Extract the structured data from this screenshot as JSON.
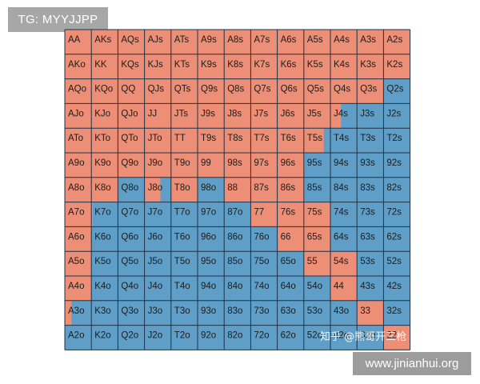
{
  "badges": {
    "tg": "TG: MYYJJPP",
    "site": "www.jinianhui.org",
    "zhihu": "知乎 @熊哥开三枪"
  },
  "colors": {
    "raise": "#ec8f76",
    "fold": "#5f9fc7",
    "grid": "#1f3147"
  },
  "chart_data": {
    "type": "table",
    "ranks": [
      "A",
      "K",
      "Q",
      "J",
      "T",
      "9",
      "8",
      "7",
      "6",
      "5",
      "4",
      "3",
      "2"
    ],
    "hands": [
      [
        "AA",
        "AKs",
        "AQs",
        "AJs",
        "ATs",
        "A9s",
        "A8s",
        "A7s",
        "A6s",
        "A5s",
        "A4s",
        "A3s",
        "A2s"
      ],
      [
        "AKo",
        "KK",
        "KQs",
        "KJs",
        "KTs",
        "K9s",
        "K8s",
        "K7s",
        "K6s",
        "K5s",
        "K4s",
        "K3s",
        "K2s"
      ],
      [
        "AQo",
        "KQo",
        "QQ",
        "QJs",
        "QTs",
        "Q9s",
        "Q8s",
        "Q7s",
        "Q6s",
        "Q5s",
        "Q4s",
        "Q3s",
        "Q2s"
      ],
      [
        "AJo",
        "KJo",
        "QJo",
        "JJ",
        "JTs",
        "J9s",
        "J8s",
        "J7s",
        "J6s",
        "J5s",
        "J4s",
        "J3s",
        "J2s"
      ],
      [
        "ATo",
        "KTo",
        "QTo",
        "JTo",
        "TT",
        "T9s",
        "T8s",
        "T7s",
        "T6s",
        "T5s",
        "T4s",
        "T3s",
        "T2s"
      ],
      [
        "A9o",
        "K9o",
        "Q9o",
        "J9o",
        "T9o",
        "99",
        "98s",
        "97s",
        "96s",
        "95s",
        "94s",
        "93s",
        "92s"
      ],
      [
        "A8o",
        "K8o",
        "Q8o",
        "J8o",
        "T8o",
        "98o",
        "88",
        "87s",
        "86s",
        "85s",
        "84s",
        "83s",
        "82s"
      ],
      [
        "A7o",
        "K7o",
        "Q7o",
        "J7o",
        "T7o",
        "97o",
        "87o",
        "77",
        "76s",
        "75s",
        "74s",
        "73s",
        "72s"
      ],
      [
        "A6o",
        "K6o",
        "Q6o",
        "J6o",
        "T6o",
        "96o",
        "86o",
        "76o",
        "66",
        "65s",
        "64s",
        "63s",
        "62s"
      ],
      [
        "A5o",
        "K5o",
        "Q5o",
        "J5o",
        "T5o",
        "95o",
        "85o",
        "75o",
        "65o",
        "55",
        "54s",
        "53s",
        "52s"
      ],
      [
        "A4o",
        "K4o",
        "Q4o",
        "J4o",
        "T4o",
        "94o",
        "84o",
        "74o",
        "64o",
        "54o",
        "44",
        "43s",
        "42s"
      ],
      [
        "A3o",
        "K3o",
        "Q3o",
        "J3o",
        "T3o",
        "93o",
        "83o",
        "73o",
        "63o",
        "53o",
        "43o",
        "33",
        "32s"
      ],
      [
        "A2o",
        "K2o",
        "Q2o",
        "J2o",
        "T2o",
        "92o",
        "82o",
        "72o",
        "62o",
        "52o",
        "42o",
        "32o",
        "22"
      ]
    ],
    "raise_fraction": [
      [
        1,
        1,
        1,
        1,
        1,
        1,
        1,
        1,
        1,
        1,
        1,
        1,
        1
      ],
      [
        1,
        1,
        1,
        1,
        1,
        1,
        1,
        1,
        1,
        1,
        1,
        1,
        1
      ],
      [
        1,
        1,
        1,
        1,
        1,
        1,
        1,
        1,
        1,
        1,
        1,
        1,
        0
      ],
      [
        1,
        1,
        1,
        1,
        1,
        1,
        1,
        1,
        1,
        1,
        0.4,
        0,
        0
      ],
      [
        1,
        1,
        1,
        1,
        1,
        1,
        1,
        1,
        1,
        0.75,
        0,
        0,
        0
      ],
      [
        1,
        1,
        1,
        1,
        1,
        1,
        1,
        1,
        1,
        0,
        0,
        0,
        0
      ],
      [
        1,
        1,
        0,
        0.6,
        1,
        0,
        1,
        1,
        1,
        0,
        0,
        0,
        0
      ],
      [
        1,
        0.05,
        0,
        0,
        0,
        0,
        0,
        1,
        1,
        1,
        0,
        0,
        0
      ],
      [
        1,
        0,
        0,
        0,
        0,
        0,
        0,
        0,
        1,
        1,
        0,
        0,
        0
      ],
      [
        1,
        0,
        0,
        0,
        0,
        0,
        0,
        0,
        0,
        1,
        1,
        0,
        0
      ],
      [
        1,
        0,
        0,
        0,
        0,
        0,
        0,
        0,
        0,
        0,
        1,
        0,
        0
      ],
      [
        0.25,
        0,
        0,
        0,
        0,
        0,
        0,
        0,
        0,
        0,
        0,
        1,
        0
      ],
      [
        0,
        0,
        0,
        0,
        0,
        0,
        0,
        0,
        0,
        0,
        0,
        0,
        1
      ]
    ]
  }
}
